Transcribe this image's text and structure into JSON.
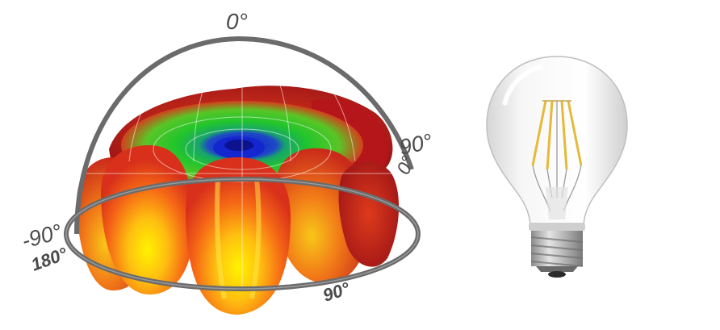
{
  "diagram": {
    "labels": {
      "top": "0°",
      "right_upper": "90°",
      "right_lower": "0°",
      "left_upper": "-90°",
      "left_lower": "180°",
      "bottom": "90°"
    },
    "colors": {
      "low_intensity": "#1c2fd6",
      "mid_intensity": "#22c22a",
      "high_intensity": "#e8321a",
      "peak_intensity": "#f7e21c",
      "dark_lobe": "#b4141a",
      "frame": "#6b6b6b"
    },
    "icons": [
      "radiation-pattern-3d",
      "filament-led-bulb-icon"
    ]
  }
}
